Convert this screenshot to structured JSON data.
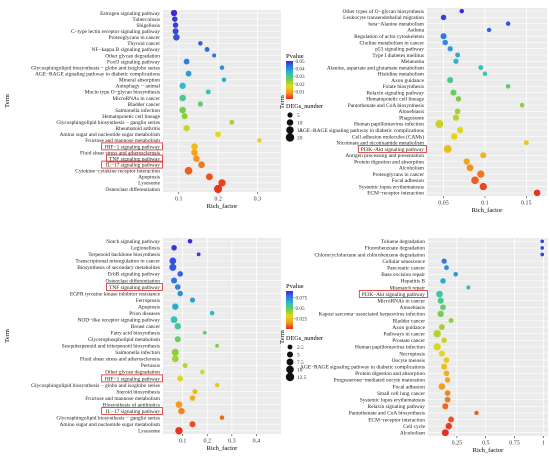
{
  "figure": {
    "chart_data": [
      {
        "id": "A",
        "type": "scatter",
        "panel_letter": "A",
        "xlabel": "Rich_factor",
        "ylabel": "Term",
        "xlim": [
          0.06,
          0.36
        ],
        "xticks": [
          0.1,
          0.2,
          0.3
        ],
        "grid": true,
        "legend_position": "right",
        "pvalue_title": "Pvalue",
        "pvalue_range": [
          0.0,
          0.05
        ],
        "pvalue_ticks": [
          0.05,
          0.04,
          0.03,
          0.02,
          0.01
        ],
        "size_title": "DEGs_number",
        "size_ticks": [
          5,
          10,
          15,
          20
        ],
        "color_stops": [
          "#3a2bd6",
          "#2f7fe0",
          "#28c2c8",
          "#7fcf3a",
          "#e6d81e",
          "#f59a1e",
          "#e8261e"
        ],
        "highlighted": [
          "HIF−1 signaling pathway",
          "TNF signaling pathway",
          "IL−17 signaling pathway"
        ],
        "terms": [
          "Estrogen signaling pathway",
          "Tuberculosis",
          "Shigellosis",
          "C−type lectin receptor signaling pathway",
          "Proteoglycans in cancer",
          "Thyroid cancer",
          "NF−kappa B signaling pathway",
          "Other glycan degradation",
          "FoxO signaling pathway",
          "Glycosphingolipid biosynthesis − globo and isoglobo series",
          "AGE−RAGE signaling pathway in diabetic complications",
          "Mineral absorption",
          "Autophagy − animal",
          "Mucin type O−glycan biosynthesis",
          "MicroRNAs in cancer",
          "Bladder cancer",
          "Salmonella infection",
          "Hematopoietic cell lineage",
          "Glycosphingolipid biosynthesis − ganglio series",
          "Rheumatoid arthritis",
          "Amino sugar and nucleotide sugar metabolism",
          "Fructose and mannose metabolism",
          "HIF−1 signaling pathway",
          "Fluid shear stress and atherosclerosis",
          "TNF signaling pathway",
          "IL−17 signaling pathway",
          "Cytokine−cytokine receptor interaction",
          "Apoptosis",
          "Lysosome",
          "Osteoclast differentiation"
        ],
        "rich_factor": [
          0.088,
          0.09,
          0.092,
          0.092,
          0.094,
          0.155,
          0.172,
          0.19,
          0.12,
          0.21,
          0.125,
          0.215,
          0.11,
          0.175,
          0.11,
          0.155,
          0.11,
          0.115,
          0.235,
          0.12,
          0.2,
          0.305,
          0.14,
          0.14,
          0.145,
          0.158,
          0.125,
          0.178,
          0.21,
          0.2
        ],
        "pvalue": [
          0.05,
          0.049,
          0.048,
          0.047,
          0.046,
          0.045,
          0.044,
          0.043,
          0.042,
          0.04,
          0.038,
          0.036,
          0.034,
          0.032,
          0.03,
          0.028,
          0.026,
          0.024,
          0.022,
          0.019,
          0.017,
          0.015,
          0.013,
          0.01,
          0.008,
          0.006,
          0.004,
          0.003,
          0.002,
          0.001
        ],
        "degs_number": [
          9,
          6,
          6,
          8,
          10,
          3,
          4,
          2,
          7,
          3,
          7,
          3,
          9,
          4,
          10,
          5,
          10,
          8,
          4,
          9,
          7,
          3,
          10,
          10,
          10,
          11,
          16,
          12,
          14,
          18
        ]
      },
      {
        "id": "B",
        "type": "scatter",
        "panel_letter": "B",
        "xlabel": "Rich_factor",
        "ylabel": "Term",
        "xlim": [
          0.03,
          0.175
        ],
        "xticks": [
          0.05,
          0.1,
          0.15
        ],
        "grid": true,
        "legend_position": "right",
        "pvalue_title": "Pvalue",
        "pvalue_range": [
          0.0,
          0.13
        ],
        "pvalue_ticks": [
          0.12,
          0.08,
          0.04
        ],
        "size_title": "DEGs_number",
        "size_ticks": [
          5,
          10,
          15,
          20
        ],
        "color_stops": [
          "#3a2bd6",
          "#2f7fe0",
          "#28c2c8",
          "#7fcf3a",
          "#e6d81e",
          "#f59a1e",
          "#e8261e"
        ],
        "highlighted": [
          "PI3K−Akt signaling pathway"
        ],
        "terms": [
          "Other types of O−glycan biosynthesis",
          "Leukocyte transendothelial migration",
          "beta−Alanine metabolism",
          "Asthma",
          "Regulation of actin cytoskeleton",
          "Choline metabolism in cancer",
          "p53 signaling pathway",
          "Type I diabetes mellitus",
          "Melanoma",
          "Alanine, aspartate and glutamate metabolism",
          "Histidine metabolism",
          "Axon guidance",
          "Folate biosynthesis",
          "Relaxin signaling pathway",
          "Hematopoietic cell lineage",
          "Pantothenate and CoA biosynthesis",
          "Amoebiasis",
          "Phagosome",
          "Human papillomavirus infection",
          "AGE−RAGE signaling pathway in diabetic complications",
          "Cell adhesion molecules (CAMs)",
          "Nicotinate and nicotinamide metabolism",
          "PI3K−Akt signaling pathway",
          "Antigen processing and presentation",
          "Protein digestion and absorption",
          "Alcoholism",
          "Proteoglycans in cancer",
          "Focal adhesion",
          "Systemic lupus erythematosus",
          "ECM−receptor interaction"
        ],
        "rich_factor": [
          0.072,
          0.05,
          0.128,
          0.105,
          0.05,
          0.052,
          0.058,
          0.067,
          0.065,
          0.095,
          0.1,
          0.058,
          0.128,
          0.062,
          0.068,
          0.145,
          0.067,
          0.065,
          0.045,
          0.07,
          0.063,
          0.15,
          0.055,
          0.098,
          0.078,
          0.082,
          0.095,
          0.088,
          0.098,
          0.163
        ],
        "pvalue": [
          0.13,
          0.125,
          0.12,
          0.115,
          0.11,
          0.105,
          0.1,
          0.095,
          0.09,
          0.086,
          0.082,
          0.078,
          0.074,
          0.07,
          0.066,
          0.062,
          0.058,
          0.054,
          0.05,
          0.046,
          0.042,
          0.038,
          0.034,
          0.03,
          0.026,
          0.02,
          0.015,
          0.01,
          0.006,
          0.002
        ],
        "degs_number": [
          3,
          6,
          3,
          3,
          8,
          6,
          5,
          4,
          5,
          4,
          3,
          8,
          3,
          8,
          6,
          3,
          7,
          9,
          18,
          9,
          10,
          4,
          17,
          8,
          9,
          12,
          14,
          15,
          14,
          10
        ]
      },
      {
        "id": "C",
        "type": "scatter",
        "panel_letter": "C",
        "xlabel": "Rich_factor",
        "ylabel": "Term",
        "xlim": [
          0.02,
          0.5
        ],
        "xticks": [
          0.1,
          0.2,
          0.3,
          0.4
        ],
        "grid": true,
        "legend_position": "right",
        "pvalue_title": "Pvalue",
        "pvalue_range": [
          0.0,
          0.09
        ],
        "pvalue_ticks": [
          0.075,
          0.05,
          0.025
        ],
        "size_title": "DEGs_number",
        "size_ticks": [
          2.5,
          5.0,
          7.5,
          10.0,
          12.5
        ],
        "color_stops": [
          "#3a2bd6",
          "#2f7fe0",
          "#28c2c8",
          "#7fcf3a",
          "#e6d81e",
          "#f59a1e",
          "#e8261e"
        ],
        "highlighted": [
          "TNF signaling pathway",
          "HIF−1 signaling pathway",
          "IL−17 signaling pathway"
        ],
        "terms": [
          "Notch signaling pathway",
          "Legionellosis",
          "Terpenoid backbone biosynthesis",
          "Transcriptional misregulation in cancer",
          "Biosynthesis of secondary metabolites",
          "ErbB signaling pathway",
          "Osteoclast differentiation",
          "TNF signaling pathway",
          "EGFR tyrosine kinase inhibitor resistance",
          "Ferroptosis",
          "Apoptosis",
          "Prion diseases",
          "NOD−like receptor signaling pathway",
          "Breast cancer",
          "Fatty acid biosynthesis",
          "Glycerophospholipid metabolism",
          "Sesquiterpenoid and triterpenoid biosynthesis",
          "Salmonella infection",
          "Fluid shear stress and atherosclerosis",
          "Pertussis",
          "Other glycan degradation",
          "HIF−1 signaling pathway",
          "Glycosphingolipid biosynthesis − globo and isoglobo series",
          "Steroid biosynthesis",
          "Fructose and mannose metabolism",
          "Biosynthesis of antibiotics",
          "IL−17 signaling pathway",
          "Glycosphingolipid biosynthesis − ganglio series",
          "Amino sugar and nucleotide sugar metabolism",
          "Lysosome"
        ],
        "rich_factor": [
          0.13,
          0.065,
          0.165,
          0.06,
          0.06,
          0.09,
          0.065,
          0.08,
          0.09,
          0.14,
          0.07,
          0.22,
          0.065,
          0.08,
          0.19,
          0.08,
          0.24,
          0.07,
          0.07,
          0.11,
          0.18,
          0.09,
          0.24,
          0.15,
          0.14,
          0.085,
          0.095,
          0.26,
          0.14,
          0.085
        ],
        "pvalue": [
          0.09,
          0.088,
          0.086,
          0.084,
          0.082,
          0.08,
          0.077,
          0.074,
          0.071,
          0.068,
          0.065,
          0.062,
          0.058,
          0.055,
          0.052,
          0.049,
          0.046,
          0.043,
          0.04,
          0.037,
          0.034,
          0.031,
          0.027,
          0.023,
          0.02,
          0.016,
          0.012,
          0.009,
          0.005,
          0.002
        ],
        "degs_number": [
          2,
          4,
          1,
          7,
          8,
          4,
          5,
          4,
          4,
          3,
          6,
          2,
          7,
          6,
          1,
          5,
          1,
          8,
          7,
          3,
          2,
          5,
          2,
          3,
          4,
          7,
          6,
          2,
          5,
          9
        ]
      },
      {
        "id": "D",
        "type": "scatter",
        "panel_letter": "D",
        "xlabel": "Rich_factor",
        "ylabel": "Term",
        "xlim": [
          0.0,
          1.04
        ],
        "xticks": [
          0.25,
          0.5,
          0.75,
          1.0
        ],
        "grid": true,
        "legend_position": "right",
        "pvalue_title": "Pvalue",
        "pvalue_range": [
          0.0,
          0.065
        ],
        "pvalue_ticks": [
          0.06,
          0.04,
          0.02
        ],
        "size_title": "DEGs_number",
        "size_ticks": [
          10,
          20,
          30
        ],
        "color_stops": [
          "#3a2bd6",
          "#2f7fe0",
          "#28c2c8",
          "#7fcf3a",
          "#e6d81e",
          "#f59a1e",
          "#e8261e"
        ],
        "highlighted": [
          "PI3K−Akt signaling pathway"
        ],
        "terms": [
          "Toluene degradation",
          "Fluorobenzoate degradation",
          "Chlorocyclohexane and chlorobenzene degradation",
          "Cellular senescence",
          "Pancreatic cancer",
          "Base excision repair",
          "Hepatitis B",
          "Mismatch repair",
          "PI3K−Akt signaling pathway",
          "MicroRNAs in cancer",
          "Amoebiasis",
          "Kaposi sarcoma−associated herpesvirus infection",
          "Bladder cancer",
          "Axon guidance",
          "Pathways in cancer",
          "Prostate cancer",
          "Human papillomavirus infection",
          "Necroptosis",
          "Oocyte meiosis",
          "AGE−RAGE signaling pathway in diabetic complications",
          "Protein digestion and absorption",
          "Progesterone−mediated oocyte maturation",
          "Focal adhesion",
          "Small cell lung cancer",
          "Systemic lupus erythematosus",
          "Relaxin signaling pathway",
          "Pantothenate and CoA biosynthesis",
          "ECM−receptor interaction",
          "Cell cycle",
          "Alcoholism"
        ],
        "rich_factor": [
          0.99,
          0.99,
          0.99,
          0.14,
          0.16,
          0.24,
          0.13,
          0.35,
          0.1,
          0.11,
          0.13,
          0.11,
          0.2,
          0.12,
          0.08,
          0.14,
          0.08,
          0.12,
          0.16,
          0.14,
          0.16,
          0.17,
          0.12,
          0.17,
          0.17,
          0.15,
          0.42,
          0.2,
          0.18,
          0.15
        ],
        "pvalue": [
          0.062,
          0.062,
          0.062,
          0.055,
          0.052,
          0.05,
          0.047,
          0.044,
          0.041,
          0.039,
          0.036,
          0.034,
          0.031,
          0.029,
          0.027,
          0.025,
          0.023,
          0.021,
          0.019,
          0.017,
          0.015,
          0.013,
          0.011,
          0.009,
          0.008,
          0.006,
          0.005,
          0.004,
          0.002,
          0.001
        ],
        "degs_number": [
          2,
          2,
          2,
          8,
          6,
          5,
          9,
          3,
          16,
          12,
          10,
          14,
          6,
          11,
          22,
          9,
          20,
          12,
          10,
          11,
          10,
          9,
          15,
          10,
          11,
          12,
          4,
          11,
          14,
          18
        ]
      }
    ]
  }
}
